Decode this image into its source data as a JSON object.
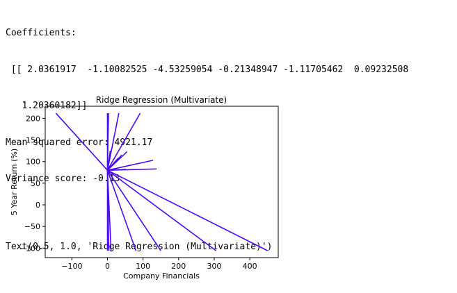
{
  "output": {
    "line1": "Coefficients:",
    "line2": " [[ 2.0361917  -1.10082525 -4.53259054 -0.21348947 -1.11705462  0.09232508",
    "line3": "   1.20360182]]",
    "line4": "Mean squared error: 4921.17",
    "line5": "Variance score: -0.13",
    "line6": "Text(0.5, 1.0, 'Ridge Regression (Multivariate)')"
  },
  "colors": {
    "series": "#4b0af0"
  },
  "chart_data": {
    "type": "line",
    "title": "Ridge Regression (Multivariate)",
    "xlabel": "Company Financials",
    "ylabel": "5 Year Return (%)",
    "xlim": [
      -175,
      480
    ],
    "ylim": [
      -122,
      228
    ],
    "xticks": [
      -100,
      0,
      100,
      200,
      300,
      400
    ],
    "yticks": [
      -100,
      -50,
      0,
      50,
      100,
      150,
      200
    ],
    "xtick_labels": [
      "−100",
      "0",
      "100",
      "200",
      "300",
      "400"
    ],
    "ytick_labels": [
      "−100",
      "−50",
      "0",
      "50",
      "100",
      "150",
      "200"
    ],
    "grid": false,
    "legend": "none",
    "center": [
      0,
      80
    ],
    "lines_to": [
      [
        -145,
        212
      ],
      [
        0,
        212
      ],
      [
        3,
        212
      ],
      [
        32,
        212
      ],
      [
        92,
        212
      ],
      [
        0,
        -106
      ],
      [
        4,
        -106
      ],
      [
        10,
        -106
      ],
      [
        80,
        -106
      ],
      [
        150,
        -106
      ],
      [
        305,
        -106
      ],
      [
        450,
        -106
      ],
      [
        55,
        123
      ],
      [
        128,
        103
      ],
      [
        138,
        83
      ],
      [
        52,
        82
      ],
      [
        30,
        108
      ],
      [
        40,
        115
      ],
      [
        8,
        125
      ]
    ]
  }
}
